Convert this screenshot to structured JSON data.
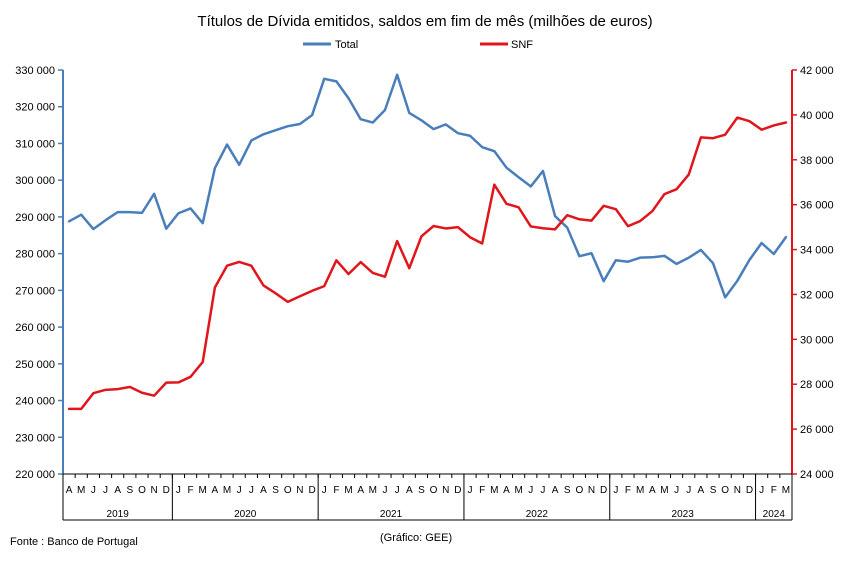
{
  "title": "Títulos de Dívida emitidos, saldos em fim de mês  (milhões de euros)",
  "footer": {
    "source": "Fonte : Banco de Portugal",
    "credit": "(Gráfico: GEE)"
  },
  "chart_data": {
    "type": "line",
    "title": "Títulos de Dívida emitidos, saldos em fim de mês  (milhões de euros)",
    "legend_position": "top-center",
    "grid": false,
    "categories": [
      "A",
      "M",
      "J",
      "J",
      "A",
      "S",
      "O",
      "N",
      "D",
      "J",
      "F",
      "M",
      "A",
      "M",
      "J",
      "J",
      "A",
      "S",
      "O",
      "N",
      "D",
      "J",
      "F",
      "M",
      "A",
      "M",
      "J",
      "J",
      "A",
      "S",
      "O",
      "N",
      "D",
      "J",
      "F",
      "M",
      "A",
      "M",
      "J",
      "J",
      "A",
      "S",
      "O",
      "N",
      "D",
      "J",
      "F",
      "M",
      "A",
      "M",
      "J",
      "J",
      "A",
      "S",
      "O",
      "N",
      "D",
      "J",
      "F",
      "M"
    ],
    "years": [
      {
        "label": "2019",
        "count": 9
      },
      {
        "label": "2020",
        "count": 12
      },
      {
        "label": "2021",
        "count": 12
      },
      {
        "label": "2022",
        "count": 12
      },
      {
        "label": "2023",
        "count": 12
      },
      {
        "label": "2024",
        "count": 3
      }
    ],
    "y_left": {
      "ylim": [
        220000,
        330000
      ],
      "ticks": [
        "220 000",
        "230 000",
        "240 000",
        "250 000",
        "260 000",
        "270 000",
        "280 000",
        "290 000",
        "300 000",
        "310 000",
        "320 000",
        "330 000"
      ],
      "tick_values": [
        220000,
        230000,
        240000,
        250000,
        260000,
        270000,
        280000,
        290000,
        300000,
        310000,
        320000,
        330000
      ]
    },
    "y_right": {
      "ylim": [
        24000,
        42000
      ],
      "ticks": [
        "24 000",
        "26 000",
        "28 000",
        "30 000",
        "32 000",
        "34 000",
        "36 000",
        "38 000",
        "40 000",
        "42 000"
      ],
      "tick_values": [
        24000,
        26000,
        28000,
        30000,
        32000,
        34000,
        36000,
        38000,
        40000,
        42000
      ]
    },
    "series": [
      {
        "name": "Total",
        "axis": "left",
        "color": "#4A7EBB",
        "values": [
          288800,
          290600,
          286700,
          289100,
          291300,
          291300,
          291100,
          296300,
          286800,
          291000,
          292300,
          288300,
          303300,
          309700,
          304200,
          310800,
          312500,
          313600,
          314700,
          315300,
          317700,
          327600,
          326900,
          322300,
          316600,
          315700,
          319100,
          328700,
          318300,
          316300,
          313900,
          315200,
          312800,
          312100,
          309000,
          307900,
          303400,
          300800,
          298300,
          302500,
          290200,
          287100,
          279300,
          280100,
          272500,
          278200,
          277800,
          278900,
          279000,
          279400,
          277200,
          278900,
          281000,
          277400,
          268100,
          272600,
          278300,
          282900,
          279900,
          284500
        ]
      },
      {
        "name": "SNF",
        "axis": "right",
        "color": "#E0161C",
        "values": [
          26900,
          26900,
          27600,
          27750,
          27780,
          27880,
          27620,
          27490,
          28070,
          28080,
          28330,
          28990,
          32310,
          33280,
          33450,
          33280,
          32400,
          32050,
          31670,
          31920,
          32160,
          32370,
          33520,
          32910,
          33440,
          32960,
          32790,
          34380,
          33170,
          34590,
          35050,
          34940,
          35000,
          34550,
          34270,
          36890,
          36040,
          35880,
          35030,
          34950,
          34900,
          35530,
          35350,
          35290,
          35950,
          35800,
          35040,
          35270,
          35710,
          36470,
          36690,
          37340,
          39000,
          38960,
          39120,
          39880,
          39720,
          39340,
          39530,
          39660
        ]
      }
    ]
  }
}
